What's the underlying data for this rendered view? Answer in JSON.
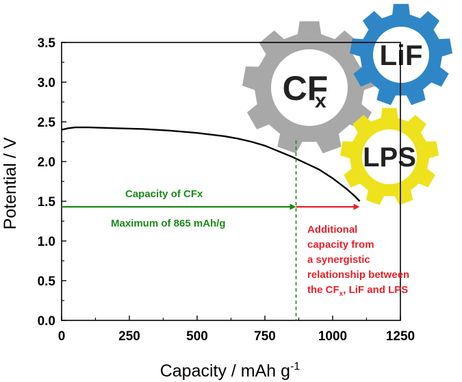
{
  "chart_data": {
    "type": "line",
    "title": "",
    "xlabel": "Capacity / mAh g",
    "xlabel_sup": "-1",
    "ylabel": "Potential / V",
    "xlim": [
      0,
      1250
    ],
    "ylim": [
      0,
      3.5
    ],
    "xticks": [
      0,
      250,
      500,
      750,
      1000,
      1250
    ],
    "yticks": [
      0.0,
      0.5,
      1.0,
      1.5,
      2.0,
      2.5,
      3.0,
      3.5
    ],
    "xtick_labels": [
      "0",
      "250",
      "500",
      "750",
      "1000",
      "1250"
    ],
    "ytick_labels": [
      "0.0",
      "0.5",
      "1.0",
      "1.5",
      "2.0",
      "2.5",
      "3.0",
      "3.5"
    ],
    "grid": false,
    "series": [
      {
        "color": "#000000",
        "x": [
          0,
          25,
          50,
          100,
          200,
          300,
          400,
          500,
          600,
          650,
          700,
          750,
          800,
          850,
          900,
          950,
          1000,
          1050,
          1080,
          1100
        ],
        "y": [
          2.4,
          2.42,
          2.43,
          2.43,
          2.42,
          2.41,
          2.39,
          2.36,
          2.32,
          2.29,
          2.25,
          2.2,
          2.13,
          2.06,
          1.98,
          1.9,
          1.79,
          1.66,
          1.57,
          1.5
        ]
      }
    ],
    "reference_line": {
      "x": 865,
      "style": "dashed",
      "color": "#1a8a1a"
    },
    "arrows": [
      {
        "from_x": 0,
        "to_x": 865,
        "y": 1.43,
        "color": "#1a8a1a"
      },
      {
        "from_x": 865,
        "to_x": 1100,
        "y": 1.43,
        "color": "#e8202a"
      }
    ],
    "annotations": {
      "capacity_label": "Capacity of CFx",
      "maximum_label": "Maximum of 865 mAh/g",
      "additional_lines": [
        "Additional",
        "capacity from",
        "a synergistic",
        "relationship between"
      ],
      "additional_last_pre": "the CF",
      "additional_last_sub": "x",
      "additional_last_post": ", LiF and LPS"
    },
    "gears": [
      {
        "label": "CF",
        "sub": "x",
        "color": "#a8a8a8"
      },
      {
        "label": "LiF",
        "sub": "",
        "color": "#2f86c6"
      },
      {
        "label": "LPS",
        "sub": "",
        "color": "#eee21d"
      }
    ]
  }
}
